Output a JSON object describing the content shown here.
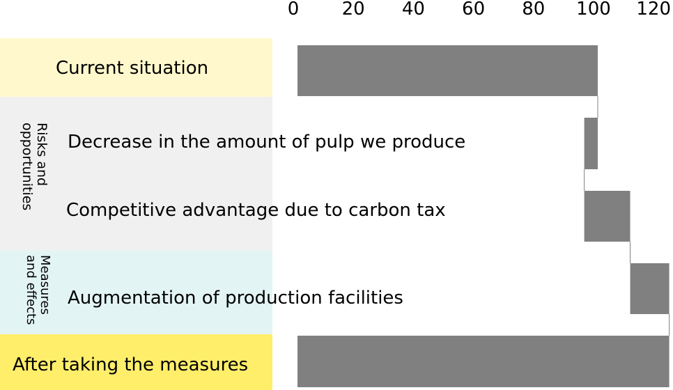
{
  "chart_data": {
    "type": "waterfall",
    "x_ticks": [
      "0",
      "20",
      "40",
      "60",
      "80",
      "100",
      "120"
    ],
    "xlim": [
      0,
      124
    ],
    "groups": [
      {
        "label": "Risks and opportunities",
        "color": "#f0f0f0"
      },
      {
        "label": "Measures and effects",
        "color": "#e3f4f4"
      }
    ],
    "rows": [
      {
        "label": "Current situation",
        "start": 0,
        "end": 100,
        "band_color": "#fef8cc"
      },
      {
        "label": "Decrease in the amount of pulp we produce",
        "start": 95.5,
        "end": 100
      },
      {
        "label": "Competitive advantage due to carbon tax",
        "start": 95.5,
        "end": 110.8
      },
      {
        "label": "Augmentation of production facilities",
        "start": 110.8,
        "end": 123.8
      },
      {
        "label": "After taking the measures",
        "start": 0,
        "end": 123.8,
        "band_color": "#feee6a"
      }
    ],
    "bar_color": "#808080"
  }
}
